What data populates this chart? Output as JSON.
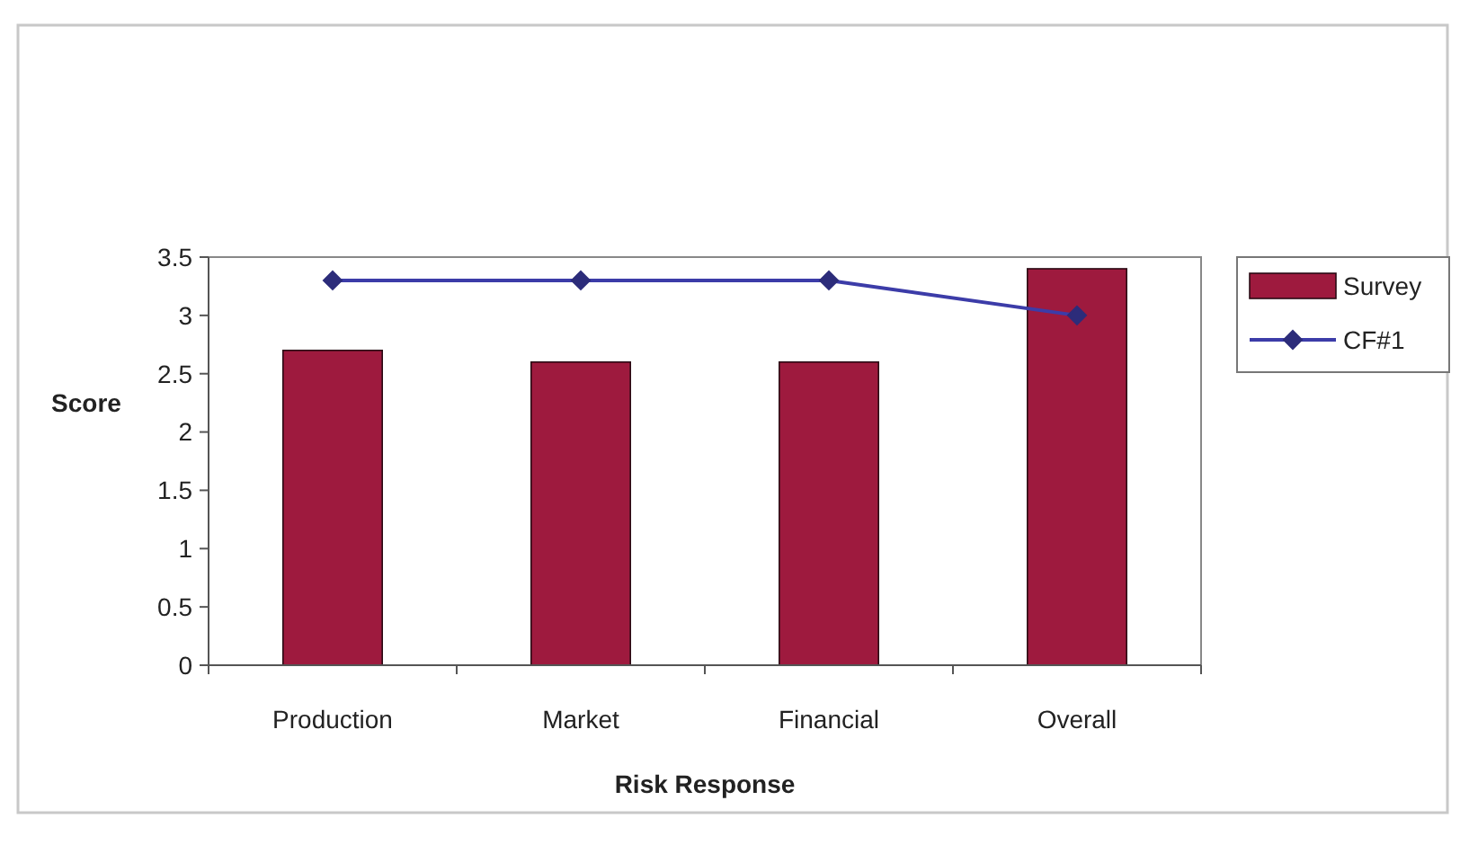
{
  "chart_data": {
    "type": "bar",
    "xlabel": "Risk Response",
    "ylabel": "Score",
    "categories": [
      "Production",
      "Market",
      "Financial",
      "Overall"
    ],
    "series": [
      {
        "name": "Survey",
        "color": "#9e1a3e",
        "values": [
          2.7,
          2.6,
          2.6,
          3.4
        ]
      },
      {
        "name": "CF#1",
        "type": "line",
        "color": "#3c3ca8",
        "values": [
          3.3,
          3.3,
          3.3,
          3.0
        ]
      }
    ],
    "ylim": [
      0,
      3.5
    ],
    "yticks": [
      0,
      0.5,
      1,
      1.5,
      2,
      2.5,
      3,
      3.5
    ],
    "grid": false,
    "legend": "top right",
    "marker": "diamond",
    "line_style": "solid"
  }
}
